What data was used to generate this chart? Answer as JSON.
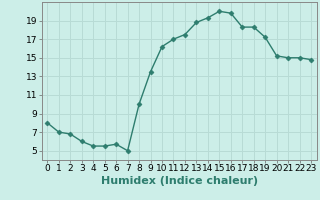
{
  "x": [
    0,
    1,
    2,
    3,
    4,
    5,
    6,
    7,
    8,
    9,
    10,
    11,
    12,
    13,
    14,
    15,
    16,
    17,
    18,
    19,
    20,
    21,
    22,
    23
  ],
  "y": [
    8.0,
    7.0,
    6.8,
    6.0,
    5.5,
    5.5,
    5.7,
    5.0,
    10.0,
    13.5,
    16.2,
    17.0,
    17.5,
    18.8,
    19.3,
    20.0,
    19.8,
    18.3,
    18.3,
    17.2,
    15.2,
    15.0,
    15.0,
    14.8
  ],
  "line_color": "#2e7d6e",
  "bg_color": "#cceee8",
  "grid_color": "#b8dbd5",
  "xlabel": "Humidex (Indice chaleur)",
  "xlim": [
    -0.5,
    23.5
  ],
  "ylim": [
    4,
    21
  ],
  "yticks": [
    5,
    7,
    9,
    11,
    13,
    15,
    17,
    19
  ],
  "xticks": [
    0,
    1,
    2,
    3,
    4,
    5,
    6,
    7,
    8,
    9,
    10,
    11,
    12,
    13,
    14,
    15,
    16,
    17,
    18,
    19,
    20,
    21,
    22,
    23
  ],
  "markersize": 2.5,
  "linewidth": 1.0,
  "xlabel_fontsize": 8,
  "tick_fontsize": 6.5
}
